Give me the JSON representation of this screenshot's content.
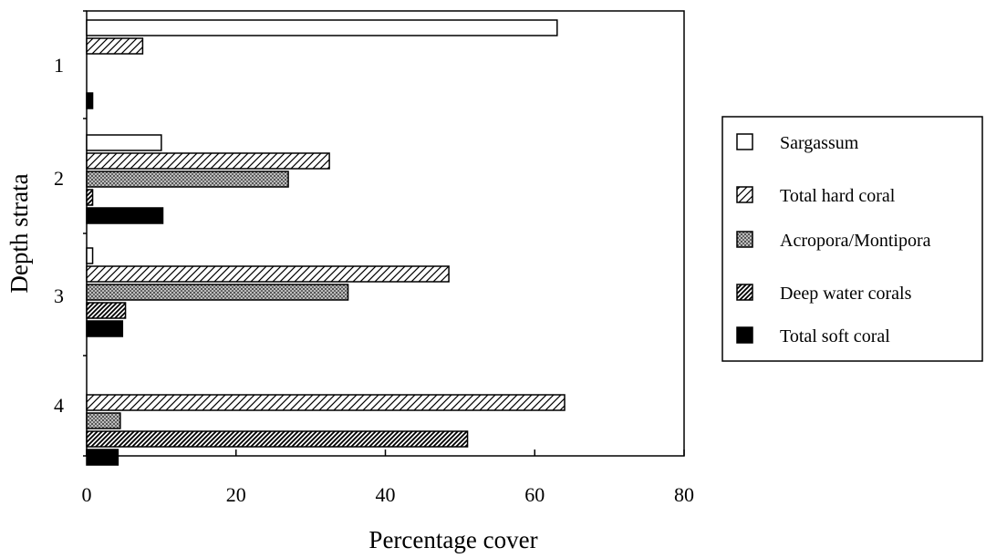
{
  "chart_data": {
    "type": "bar",
    "orientation": "horizontal",
    "title": "",
    "xlabel": "Percentage cover",
    "ylabel": "Depth strata",
    "xlim": [
      0,
      80
    ],
    "x_ticks": [
      "0",
      "20",
      "40",
      "60",
      "80"
    ],
    "categories": [
      "1",
      "2",
      "3",
      "4"
    ],
    "grid": false,
    "legend_position": "right",
    "series": [
      {
        "name": "Sargassum",
        "pattern": "white",
        "values": [
          63,
          10,
          0.8,
          0
        ]
      },
      {
        "name": "Total hard coral",
        "pattern": "diagonal-hatch",
        "values": [
          7.5,
          32.5,
          48.5,
          64
        ]
      },
      {
        "name": "Acropora/Montipora",
        "pattern": "stipple",
        "values": [
          0,
          27,
          35,
          4.5
        ]
      },
      {
        "name": "Deep water corals",
        "pattern": "dense-diagonal-hatch",
        "values": [
          0,
          0.8,
          5.2,
          51
        ]
      },
      {
        "name": "Total soft coral",
        "pattern": "black",
        "values": [
          0.8,
          10.2,
          4.8,
          4.2
        ]
      }
    ]
  },
  "colors": {
    "ink": "#000000",
    "background": "#ffffff",
    "stipple": "#8a8a8a"
  }
}
